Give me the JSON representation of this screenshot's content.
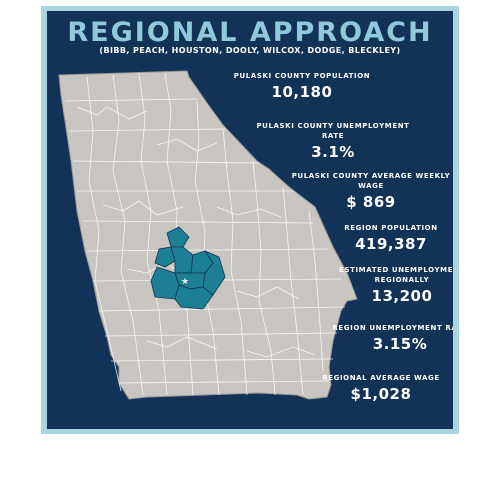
{
  "header": {
    "title": "REGIONAL APPROACH",
    "subtitle": "(BIBB, PEACH, HOUSTON, DOOLY, WILCOX, DODGE, BLECKLEY)"
  },
  "colors": {
    "background": "#123258",
    "border": "#a9d4e0",
    "title": "#8fc9da",
    "map_fill": "#c9c6c1",
    "region_fill": "#1d7f93"
  },
  "map": {
    "marker_icon": "star-icon"
  },
  "stats": [
    {
      "label": "PULASKI COUNTY POPULATION",
      "value": "10,180"
    },
    {
      "label": "PULASKI COUNTY UNEMPLOYMENT RATE",
      "value": "3.1%"
    },
    {
      "label": "PULASKI COUNTY AVERAGE WEEKLY WAGE",
      "value": "$ 869"
    },
    {
      "label": "REGION POPULATION",
      "value": "419,387"
    },
    {
      "label": "ESTIMATED UNEMPLOYMENT REGIONALLY",
      "value": "13,200"
    },
    {
      "label": "REGION UNEMPLOYMENT RATE",
      "value": "3.15%"
    },
    {
      "label": "REGIONAL AVERAGE WAGE",
      "value": "$1,028"
    }
  ]
}
